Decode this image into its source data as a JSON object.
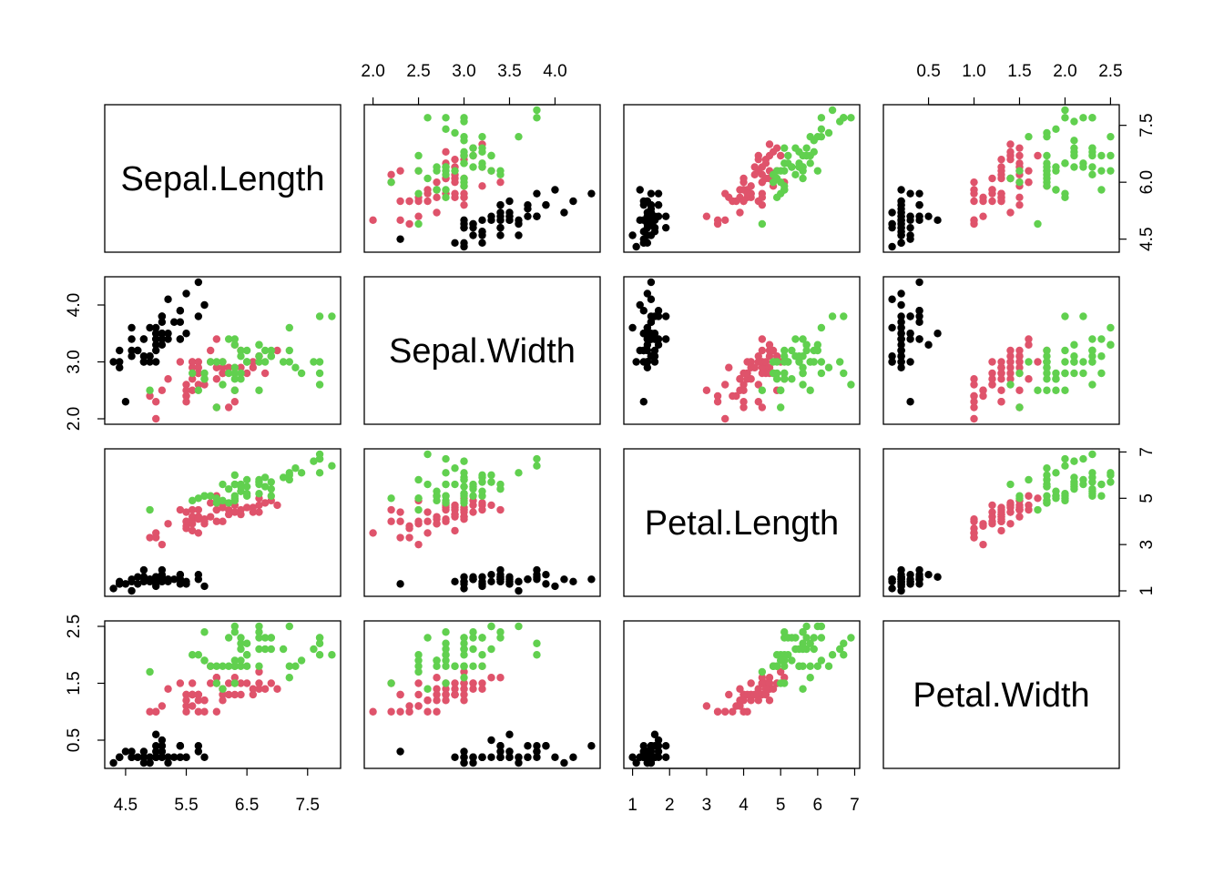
{
  "chart_data": {
    "type": "scatter",
    "variables": [
      {
        "name": "Sepal.Length",
        "range": [
          4.3,
          7.9
        ],
        "ticks": [
          "4.5",
          "5.5",
          "6.5",
          "7.5"
        ],
        "alt_ticks": [
          "4.5",
          "6.0",
          "7.5"
        ]
      },
      {
        "name": "Sepal.Width",
        "range": [
          2.0,
          4.4
        ],
        "ticks": [
          "2.0",
          "2.5",
          "3.0",
          "3.5",
          "4.0"
        ],
        "alt_ticks": [
          "2.0",
          "3.0",
          "4.0"
        ]
      },
      {
        "name": "Petal.Length",
        "range": [
          1.0,
          6.9
        ],
        "ticks": [
          "1",
          "2",
          "3",
          "4",
          "5",
          "6",
          "7"
        ],
        "alt_ticks": [
          "1",
          "3",
          "5",
          "7"
        ]
      },
      {
        "name": "Petal.Width",
        "range": [
          0.1,
          2.5
        ],
        "ticks": [
          "0.5",
          "1.0",
          "1.5",
          "2.0",
          "2.5"
        ],
        "alt_ticks": [
          "0.5",
          "1.5",
          "2.5"
        ]
      }
    ],
    "groups": [
      {
        "color": "#000000",
        "points": [
          [
            5.1,
            3.5,
            1.4,
            0.2
          ],
          [
            4.9,
            3.0,
            1.4,
            0.2
          ],
          [
            4.7,
            3.2,
            1.3,
            0.2
          ],
          [
            4.6,
            3.1,
            1.5,
            0.2
          ],
          [
            5.0,
            3.6,
            1.4,
            0.2
          ],
          [
            5.4,
            3.9,
            1.7,
            0.4
          ],
          [
            4.6,
            3.4,
            1.4,
            0.3
          ],
          [
            5.0,
            3.4,
            1.5,
            0.2
          ],
          [
            4.4,
            2.9,
            1.4,
            0.2
          ],
          [
            4.9,
            3.1,
            1.5,
            0.1
          ],
          [
            5.4,
            3.7,
            1.5,
            0.2
          ],
          [
            4.8,
            3.4,
            1.6,
            0.2
          ],
          [
            4.8,
            3.0,
            1.4,
            0.1
          ],
          [
            4.3,
            3.0,
            1.1,
            0.1
          ],
          [
            5.8,
            4.0,
            1.2,
            0.2
          ],
          [
            5.7,
            4.4,
            1.5,
            0.4
          ],
          [
            5.4,
            3.9,
            1.3,
            0.4
          ],
          [
            5.1,
            3.5,
            1.4,
            0.3
          ],
          [
            5.7,
            3.8,
            1.7,
            0.3
          ],
          [
            5.1,
            3.8,
            1.5,
            0.3
          ],
          [
            5.4,
            3.4,
            1.7,
            0.2
          ],
          [
            5.1,
            3.7,
            1.5,
            0.4
          ],
          [
            4.6,
            3.6,
            1.0,
            0.2
          ],
          [
            5.1,
            3.3,
            1.7,
            0.5
          ],
          [
            4.8,
            3.4,
            1.9,
            0.2
          ],
          [
            5.0,
            3.0,
            1.6,
            0.2
          ],
          [
            5.0,
            3.4,
            1.6,
            0.4
          ],
          [
            5.2,
            3.5,
            1.5,
            0.2
          ],
          [
            5.2,
            3.4,
            1.4,
            0.2
          ],
          [
            4.7,
            3.2,
            1.6,
            0.2
          ],
          [
            4.8,
            3.1,
            1.6,
            0.2
          ],
          [
            5.4,
            3.4,
            1.5,
            0.4
          ],
          [
            5.2,
            4.1,
            1.5,
            0.1
          ],
          [
            5.5,
            4.2,
            1.4,
            0.2
          ],
          [
            4.9,
            3.1,
            1.5,
            0.2
          ],
          [
            5.0,
            3.2,
            1.2,
            0.2
          ],
          [
            5.5,
            3.5,
            1.3,
            0.2
          ],
          [
            4.9,
            3.6,
            1.4,
            0.1
          ],
          [
            4.4,
            3.0,
            1.3,
            0.2
          ],
          [
            5.1,
            3.4,
            1.5,
            0.2
          ],
          [
            5.0,
            3.5,
            1.3,
            0.3
          ],
          [
            4.5,
            2.3,
            1.3,
            0.3
          ],
          [
            4.4,
            3.2,
            1.3,
            0.2
          ],
          [
            5.0,
            3.5,
            1.6,
            0.6
          ],
          [
            5.1,
            3.8,
            1.9,
            0.4
          ],
          [
            4.8,
            3.0,
            1.4,
            0.3
          ],
          [
            5.1,
            3.8,
            1.6,
            0.2
          ],
          [
            4.6,
            3.2,
            1.4,
            0.2
          ],
          [
            5.3,
            3.7,
            1.5,
            0.2
          ],
          [
            5.0,
            3.3,
            1.4,
            0.2
          ]
        ]
      },
      {
        "color": "#DF536B",
        "points": [
          [
            7.0,
            3.2,
            4.7,
            1.4
          ],
          [
            6.4,
            3.2,
            4.5,
            1.5
          ],
          [
            6.9,
            3.1,
            4.9,
            1.5
          ],
          [
            5.5,
            2.3,
            4.0,
            1.3
          ],
          [
            6.5,
            2.8,
            4.6,
            1.5
          ],
          [
            5.7,
            2.8,
            4.5,
            1.3
          ],
          [
            6.3,
            3.3,
            4.7,
            1.6
          ],
          [
            4.9,
            2.4,
            3.3,
            1.0
          ],
          [
            6.6,
            2.9,
            4.6,
            1.3
          ],
          [
            5.2,
            2.7,
            3.9,
            1.4
          ],
          [
            5.0,
            2.0,
            3.5,
            1.0
          ],
          [
            5.9,
            3.0,
            4.2,
            1.5
          ],
          [
            6.0,
            2.2,
            4.0,
            1.0
          ],
          [
            6.1,
            2.9,
            4.7,
            1.4
          ],
          [
            5.6,
            2.9,
            3.6,
            1.3
          ],
          [
            6.7,
            3.1,
            4.4,
            1.4
          ],
          [
            5.6,
            3.0,
            4.5,
            1.5
          ],
          [
            5.8,
            2.7,
            4.1,
            1.0
          ],
          [
            6.2,
            2.2,
            4.5,
            1.5
          ],
          [
            5.6,
            2.5,
            3.9,
            1.1
          ],
          [
            5.9,
            3.2,
            4.8,
            1.8
          ],
          [
            6.1,
            2.8,
            4.0,
            1.3
          ],
          [
            6.3,
            2.5,
            4.9,
            1.5
          ],
          [
            6.1,
            2.8,
            4.7,
            1.2
          ],
          [
            6.4,
            2.9,
            4.3,
            1.3
          ],
          [
            6.6,
            3.0,
            4.4,
            1.4
          ],
          [
            6.8,
            2.8,
            4.8,
            1.4
          ],
          [
            6.7,
            3.0,
            5.0,
            1.7
          ],
          [
            6.0,
            2.9,
            4.5,
            1.5
          ],
          [
            5.7,
            2.6,
            3.5,
            1.0
          ],
          [
            5.5,
            2.4,
            3.8,
            1.1
          ],
          [
            5.5,
            2.4,
            3.7,
            1.0
          ],
          [
            5.8,
            2.7,
            3.9,
            1.2
          ],
          [
            6.0,
            2.7,
            5.1,
            1.6
          ],
          [
            5.4,
            3.0,
            4.5,
            1.5
          ],
          [
            6.0,
            3.4,
            4.5,
            1.6
          ],
          [
            6.7,
            3.1,
            4.7,
            1.5
          ],
          [
            6.3,
            2.3,
            4.4,
            1.3
          ],
          [
            5.6,
            3.0,
            4.1,
            1.3
          ],
          [
            5.5,
            2.5,
            4.0,
            1.3
          ],
          [
            5.5,
            2.6,
            4.4,
            1.2
          ],
          [
            6.1,
            3.0,
            4.6,
            1.4
          ],
          [
            5.8,
            2.6,
            4.0,
            1.2
          ],
          [
            5.0,
            2.3,
            3.3,
            1.0
          ],
          [
            5.6,
            2.7,
            4.2,
            1.3
          ],
          [
            5.7,
            3.0,
            4.2,
            1.2
          ],
          [
            5.7,
            2.9,
            4.2,
            1.3
          ],
          [
            6.2,
            2.9,
            4.3,
            1.3
          ],
          [
            5.1,
            2.5,
            3.0,
            1.1
          ],
          [
            5.7,
            2.8,
            4.1,
            1.3
          ]
        ]
      },
      {
        "color": "#61D04F",
        "points": [
          [
            6.3,
            3.3,
            6.0,
            2.5
          ],
          [
            5.8,
            2.7,
            5.1,
            1.9
          ],
          [
            7.1,
            3.0,
            5.9,
            2.1
          ],
          [
            6.3,
            2.9,
            5.6,
            1.8
          ],
          [
            6.5,
            3.0,
            5.8,
            2.2
          ],
          [
            7.6,
            3.0,
            6.6,
            2.1
          ],
          [
            4.9,
            2.5,
            4.5,
            1.7
          ],
          [
            7.3,
            2.9,
            6.3,
            1.8
          ],
          [
            6.7,
            2.5,
            5.8,
            1.8
          ],
          [
            7.2,
            3.6,
            6.1,
            2.5
          ],
          [
            6.5,
            3.2,
            5.1,
            2.0
          ],
          [
            6.4,
            2.7,
            5.3,
            1.9
          ],
          [
            6.8,
            3.0,
            5.5,
            2.1
          ],
          [
            5.7,
            2.5,
            5.0,
            2.0
          ],
          [
            5.8,
            2.8,
            5.1,
            2.4
          ],
          [
            6.4,
            3.2,
            5.3,
            2.3
          ],
          [
            6.5,
            3.0,
            5.5,
            1.8
          ],
          [
            7.7,
            3.8,
            6.7,
            2.2
          ],
          [
            7.7,
            2.6,
            6.9,
            2.3
          ],
          [
            6.0,
            2.2,
            5.0,
            1.5
          ],
          [
            6.9,
            3.2,
            5.7,
            2.3
          ],
          [
            5.6,
            2.8,
            4.9,
            2.0
          ],
          [
            7.7,
            2.8,
            6.7,
            2.0
          ],
          [
            6.3,
            2.7,
            4.9,
            1.8
          ],
          [
            6.7,
            3.3,
            5.7,
            2.1
          ],
          [
            7.2,
            3.2,
            6.0,
            1.8
          ],
          [
            6.2,
            2.8,
            4.8,
            1.8
          ],
          [
            6.1,
            3.0,
            4.9,
            1.8
          ],
          [
            6.4,
            2.8,
            5.6,
            2.1
          ],
          [
            7.2,
            3.0,
            5.8,
            1.6
          ],
          [
            7.4,
            2.8,
            6.1,
            1.9
          ],
          [
            7.9,
            3.8,
            6.4,
            2.0
          ],
          [
            6.4,
            2.8,
            5.6,
            2.2
          ],
          [
            6.3,
            2.8,
            5.1,
            1.5
          ],
          [
            6.1,
            2.6,
            5.6,
            1.4
          ],
          [
            7.7,
            3.0,
            6.1,
            2.3
          ],
          [
            6.3,
            3.4,
            5.6,
            2.4
          ],
          [
            6.4,
            3.1,
            5.5,
            1.8
          ],
          [
            6.0,
            3.0,
            4.8,
            1.8
          ],
          [
            6.9,
            3.1,
            5.4,
            2.1
          ],
          [
            6.7,
            3.1,
            5.6,
            2.4
          ],
          [
            6.9,
            3.1,
            5.1,
            2.3
          ],
          [
            5.8,
            2.7,
            5.1,
            1.9
          ],
          [
            6.8,
            3.2,
            5.9,
            2.3
          ],
          [
            6.7,
            3.3,
            5.7,
            2.5
          ],
          [
            6.7,
            3.0,
            5.2,
            2.3
          ],
          [
            6.3,
            2.5,
            5.0,
            1.9
          ],
          [
            6.5,
            3.0,
            5.2,
            2.0
          ],
          [
            6.2,
            3.4,
            5.4,
            2.3
          ],
          [
            5.9,
            3.0,
            5.1,
            1.8
          ]
        ]
      }
    ]
  }
}
